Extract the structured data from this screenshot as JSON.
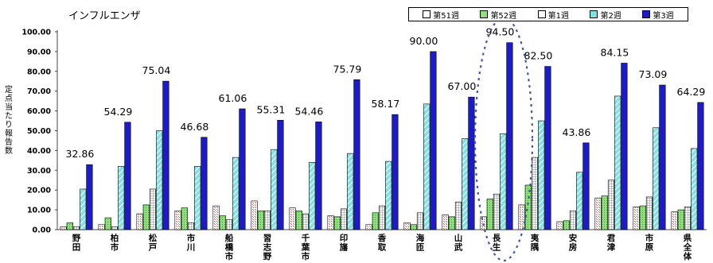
{
  "chart_data": {
    "type": "bar",
    "title": "インフルエンザ",
    "ylabel": "定点当たり報告数",
    "ylim": [
      0,
      100
    ],
    "yticks": [
      "0.00",
      "10.00",
      "20.00",
      "30.00",
      "40.00",
      "50.00",
      "60.00",
      "70.00",
      "80.00",
      "90.00",
      "100.00"
    ],
    "categories": [
      "野田",
      "柏市",
      "松戸",
      "市川",
      "船橋市",
      "習志野",
      "千葉市",
      "印旛",
      "香取",
      "海匝",
      "山武",
      "長生",
      "夷隅",
      "安房",
      "君津",
      "市原",
      "県全体"
    ],
    "series": [
      {
        "name": "第51週",
        "values": [
          1.5,
          2.5,
          8.0,
          9.5,
          12.0,
          14.5,
          11.0,
          7.0,
          2.5,
          3.5,
          7.5,
          6.5,
          12.5,
          4.0,
          16.0,
          11.5,
          9.0
        ]
      },
      {
        "name": "第52週",
        "values": [
          3.5,
          6.0,
          12.5,
          11.0,
          7.0,
          9.5,
          9.5,
          6.5,
          8.5,
          2.5,
          6.5,
          15.5,
          22.5,
          4.5,
          17.0,
          12.0,
          10.0
        ]
      },
      {
        "name": "第1週",
        "values": [
          1.5,
          1.5,
          20.5,
          3.5,
          5.0,
          9.5,
          8.0,
          10.5,
          12.0,
          8.5,
          14.0,
          18.0,
          36.5,
          9.5,
          25.0,
          16.5,
          11.5
        ]
      },
      {
        "name": "第2週",
        "values": [
          20.5,
          32.0,
          50.0,
          32.0,
          36.5,
          40.5,
          34.0,
          38.5,
          34.5,
          63.5,
          46.0,
          48.5,
          55.0,
          29.0,
          67.5,
          51.5,
          41.0
        ]
      },
      {
        "name": "第3週",
        "values": [
          32.86,
          54.29,
          75.04,
          46.68,
          61.06,
          55.31,
          54.46,
          75.79,
          58.17,
          90.0,
          67.0,
          94.5,
          82.5,
          43.86,
          84.15,
          73.09,
          64.29
        ]
      }
    ],
    "data_labels": [
      "32.86",
      "54.29",
      "75.04",
      "46.68",
      "61.06",
      "55.31",
      "54.46",
      "75.79",
      "58.17",
      "90.00",
      "67.00",
      "94.50",
      "82.50",
      "43.86",
      "84.15",
      "73.09",
      "64.29"
    ],
    "colors": {
      "w51": "#ffffff",
      "w52": "#8fe07a",
      "w1": "#ffffff",
      "w2": "#7fe3e6",
      "w3": "#1a1ad6",
      "w51_pattern": "#d85a5a",
      "w1_pattern": "#707070",
      "w2_pattern": "#ffffff",
      "highlight": "#3b57a8",
      "grid": "#9a9a9a"
    },
    "highlight_category": "長生",
    "grid": false,
    "legend_position": "top-right"
  }
}
